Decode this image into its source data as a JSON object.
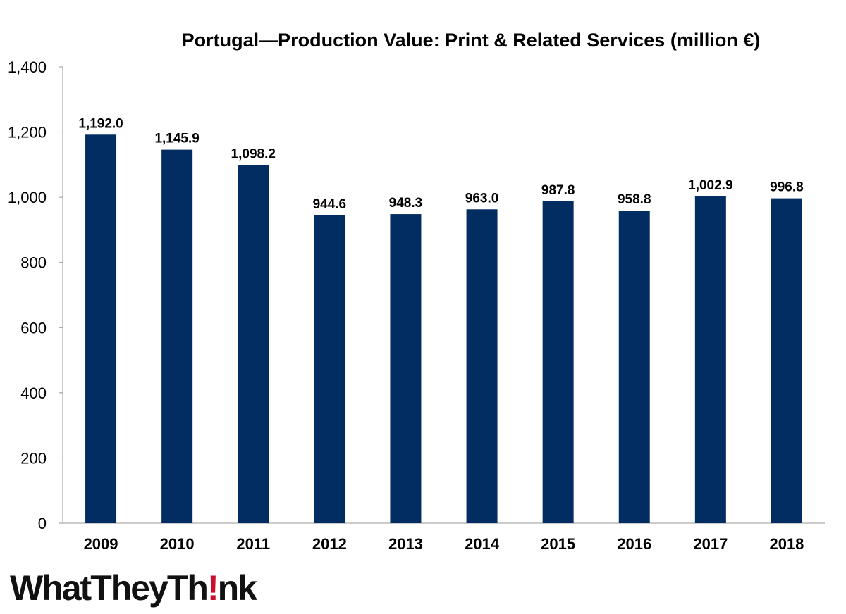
{
  "chart_data": {
    "type": "bar",
    "title": "Portugal—Production Value: Print & Related Services (million €)",
    "categories": [
      "2009",
      "2010",
      "2011",
      "2012",
      "2013",
      "2014",
      "2015",
      "2016",
      "2017",
      "2018"
    ],
    "values": [
      1192.0,
      1145.9,
      1098.2,
      944.6,
      948.3,
      963.0,
      987.8,
      958.8,
      1002.9,
      996.8
    ],
    "value_labels": [
      "1,192.0",
      "1,145.9",
      "1,098.2",
      "944.6",
      "948.3",
      "963.0",
      "987.8",
      "958.8",
      "1,002.9",
      "996.8"
    ],
    "y_ticks": [
      0,
      200,
      400,
      600,
      800,
      1000,
      1200,
      1400
    ],
    "y_tick_labels": [
      "0",
      "200",
      "400",
      "600",
      "800",
      "1,000",
      "1,200",
      "1,400"
    ],
    "ylim": [
      0,
      1400
    ],
    "grid": false,
    "legend": "none",
    "bar_color": "#022d62",
    "xlabel": "",
    "ylabel": ""
  },
  "logo": {
    "prefix": "WhatTheyTh",
    "suffix": "nk",
    "accent_color": "#c8102e"
  }
}
